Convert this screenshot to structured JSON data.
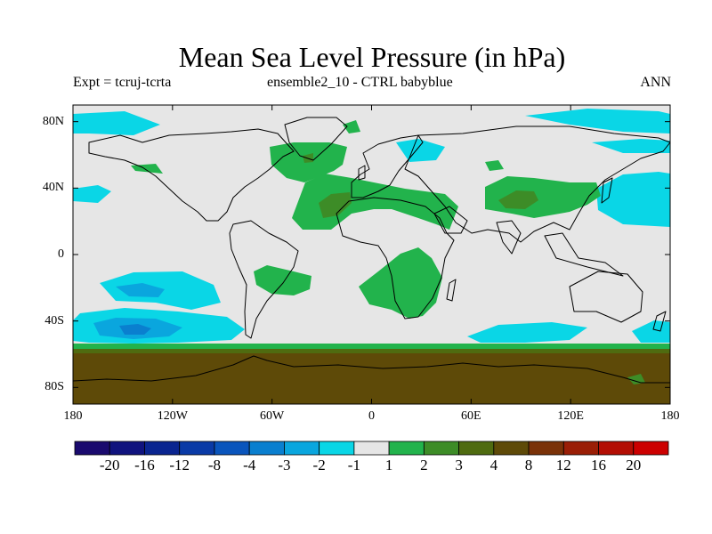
{
  "title": "Mean Sea Level Pressure (in hPa)",
  "subtitle_left": "Expt = tcruj-tcrta",
  "subtitle_center": "ensemble2_10 - CTRL babyblue",
  "subtitle_right": "ANN",
  "map": {
    "projection": "cylindrical equidistant",
    "lon_range": [
      -180,
      180
    ],
    "lat_range": [
      -90,
      90
    ],
    "background_color": "#e6e6e6",
    "y_ticks": [
      {
        "lat": 80,
        "label": "80N"
      },
      {
        "lat": 40,
        "label": "40N"
      },
      {
        "lat": 0,
        "label": "0"
      },
      {
        "lat": -40,
        "label": "40S"
      },
      {
        "lat": -80,
        "label": "80S"
      }
    ],
    "x_ticks": [
      {
        "lon": -180,
        "label": "180"
      },
      {
        "lon": -120,
        "label": "120W"
      },
      {
        "lon": -60,
        "label": "60W"
      },
      {
        "lon": 0,
        "label": "0"
      },
      {
        "lon": 60,
        "label": "60E"
      },
      {
        "lon": 120,
        "label": "120E"
      },
      {
        "lon": 180,
        "label": "180"
      }
    ]
  },
  "colorbar": {
    "colors": [
      "#1a0a6e",
      "#10137e",
      "#0a2590",
      "#0a3aa6",
      "#0a55bc",
      "#0a7fcf",
      "#0aa6de",
      "#0ad6e6",
      "#e6e6e6",
      "#22b34c",
      "#3d8c27",
      "#4f6b10",
      "#5e4a08",
      "#7a3208",
      "#9a1e06",
      "#b30e04",
      "#cc0000"
    ],
    "labels": [
      "-20",
      "-16",
      "-12",
      "-8",
      "-4",
      "-3",
      "-2",
      "-1",
      "1",
      "2",
      "3",
      "4",
      "8",
      "12",
      "16",
      "20"
    ]
  }
}
